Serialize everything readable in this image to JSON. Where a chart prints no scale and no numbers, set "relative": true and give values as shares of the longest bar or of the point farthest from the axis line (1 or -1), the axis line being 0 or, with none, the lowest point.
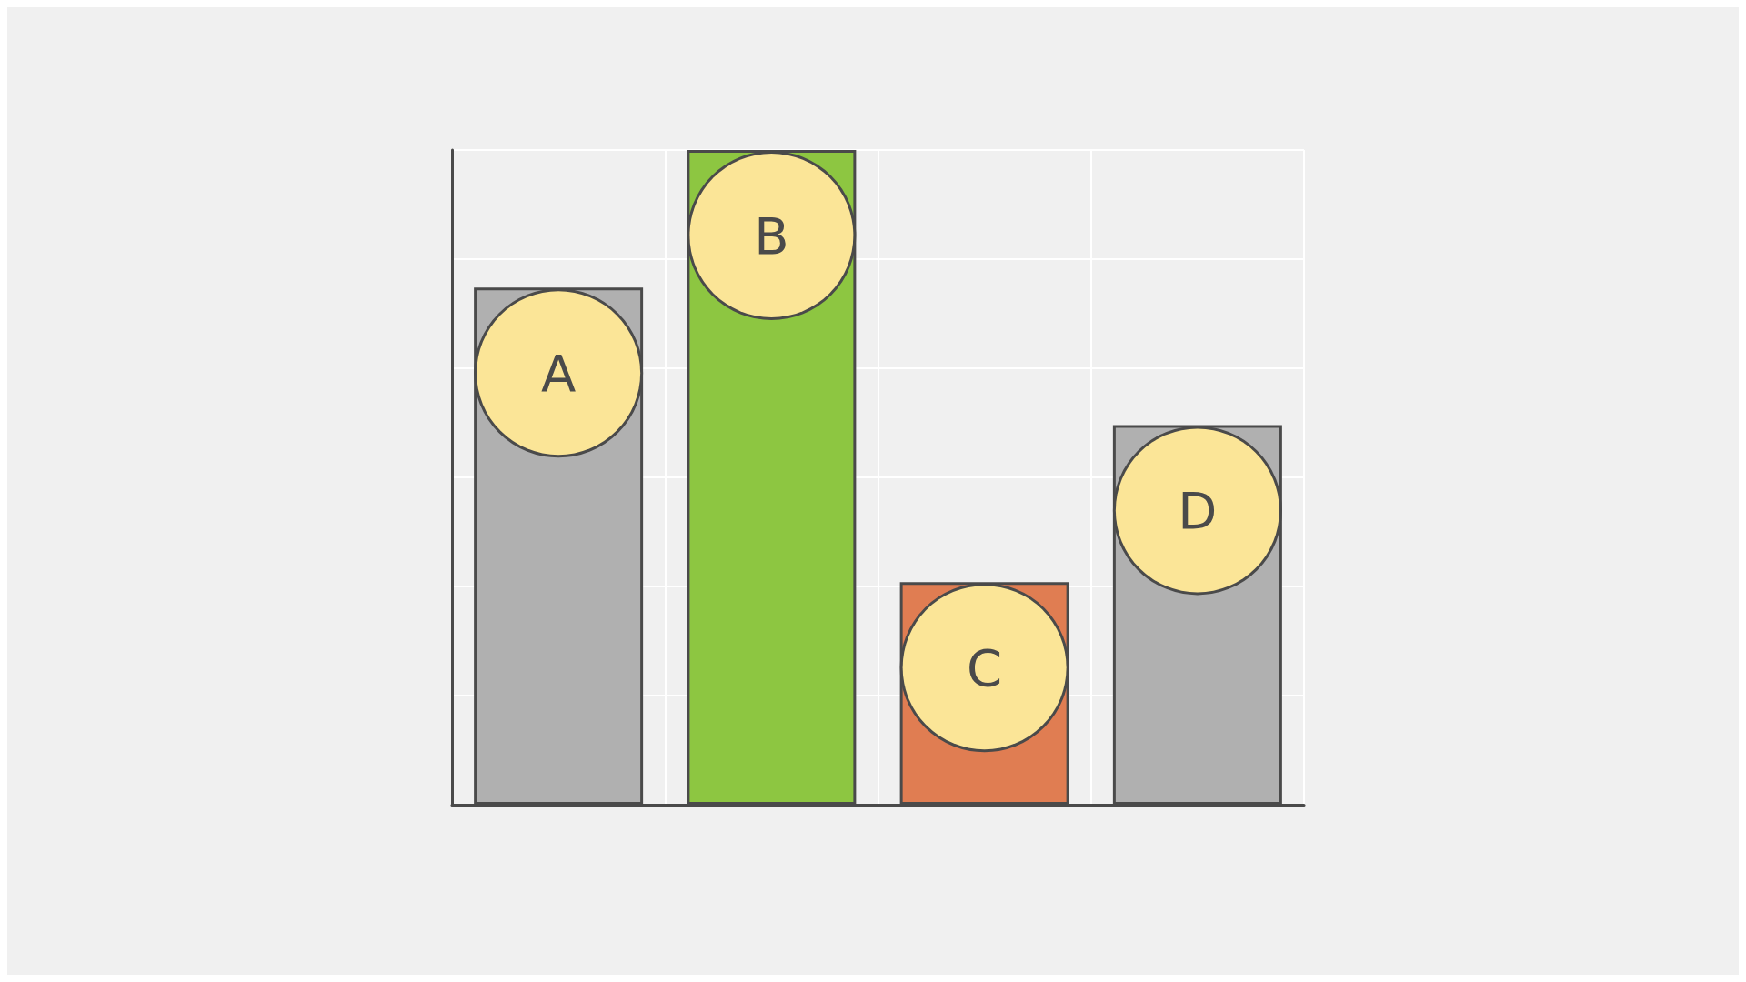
{
  "chart_data": {
    "type": "bar",
    "relative": true,
    "categories": [
      "A",
      "B",
      "C",
      "D"
    ],
    "values": [
      0.79,
      1,
      0.34,
      0.58
    ],
    "colors": [
      "#b0b0b0",
      "#8dc641",
      "#e07d52",
      "#b0b0b0"
    ],
    "grid": true,
    "tick_labels": false
  }
}
